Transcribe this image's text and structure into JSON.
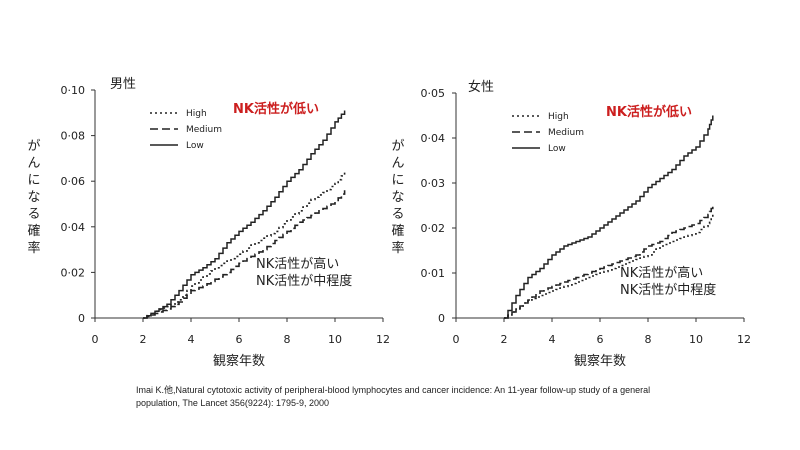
{
  "chart_data": [
    {
      "type": "line",
      "sex_label": "男性",
      "xlabel": "観察年数",
      "ylabel": "がんになる確率",
      "xlim": [
        0,
        12
      ],
      "ylim": [
        0,
        0.1
      ],
      "x_ticks": [
        "0",
        "2",
        "4",
        "6",
        "8",
        "10",
        "12"
      ],
      "y_ticks": [
        "0",
        "0·02",
        "0·04",
        "0·06",
        "0·08",
        "0·10"
      ],
      "legend": [
        "High",
        "Medium",
        "Low"
      ],
      "annotation_low": "NK活性が低い",
      "annotation_high_line1": "NK活性が高い",
      "annotation_high_line2": "NK活性が中程度",
      "series": [
        {
          "name": "High",
          "x": [
            2,
            2.5,
            3,
            3.5,
            4,
            4.5,
            5,
            5.5,
            6,
            6.5,
            7,
            7.5,
            8,
            8.5,
            9,
            9.5,
            10,
            10.4
          ],
          "y": [
            0,
            0.003,
            0.005,
            0.008,
            0.014,
            0.018,
            0.022,
            0.025,
            0.028,
            0.032,
            0.035,
            0.038,
            0.043,
            0.047,
            0.052,
            0.055,
            0.059,
            0.064
          ]
        },
        {
          "name": "Medium",
          "x": [
            2,
            2.5,
            3,
            3.5,
            4,
            4.5,
            5,
            5.5,
            6,
            6.5,
            7,
            7.5,
            8,
            8.5,
            9,
            9.5,
            10,
            10.4
          ],
          "y": [
            0,
            0.002,
            0.004,
            0.007,
            0.012,
            0.014,
            0.017,
            0.02,
            0.024,
            0.027,
            0.03,
            0.034,
            0.038,
            0.042,
            0.045,
            0.048,
            0.051,
            0.056
          ]
        },
        {
          "name": "Low",
          "x": [
            2,
            2.5,
            3,
            3.5,
            4,
            4.5,
            5,
            5.5,
            6,
            6.5,
            7,
            7.5,
            8,
            8.5,
            9,
            9.5,
            10,
            10.4
          ],
          "y": [
            0,
            0.003,
            0.006,
            0.012,
            0.019,
            0.022,
            0.026,
            0.033,
            0.038,
            0.042,
            0.047,
            0.053,
            0.06,
            0.065,
            0.072,
            0.078,
            0.086,
            0.091
          ]
        }
      ]
    },
    {
      "type": "line",
      "sex_label": "女性",
      "xlabel": "観察年数",
      "ylabel": "がんになる確率",
      "xlim": [
        0,
        12
      ],
      "ylim": [
        0,
        0.05
      ],
      "x_ticks": [
        "0",
        "2",
        "4",
        "6",
        "8",
        "10",
        "12"
      ],
      "y_ticks": [
        "0",
        "0·01",
        "0·02",
        "0·03",
        "0·04",
        "0·05"
      ],
      "legend": [
        "High",
        "Medium",
        "Low"
      ],
      "annotation_low": "NK活性が低い",
      "annotation_high_line1": "NK活性が高い",
      "annotation_high_line2": "NK活性が中程度",
      "series": [
        {
          "name": "High",
          "x": [
            2,
            2.5,
            3,
            3.5,
            4,
            4.5,
            5,
            5.5,
            6,
            6.5,
            7,
            7.5,
            8,
            8.5,
            9,
            9.5,
            10,
            10.5,
            10.7
          ],
          "y": [
            0,
            0.002,
            0.004,
            0.005,
            0.006,
            0.007,
            0.008,
            0.009,
            0.01,
            0.011,
            0.012,
            0.013,
            0.014,
            0.016,
            0.017,
            0.018,
            0.019,
            0.021,
            0.023
          ]
        },
        {
          "name": "Medium",
          "x": [
            2,
            2.5,
            3,
            3.5,
            4,
            4.5,
            5,
            5.5,
            6,
            6.5,
            7,
            7.5,
            8,
            8.5,
            9,
            9.5,
            10,
            10.5,
            10.7
          ],
          "y": [
            0,
            0.002,
            0.004,
            0.006,
            0.007,
            0.008,
            0.009,
            0.01,
            0.011,
            0.012,
            0.013,
            0.014,
            0.016,
            0.017,
            0.019,
            0.02,
            0.021,
            0.023,
            0.025
          ]
        },
        {
          "name": "Low",
          "x": [
            2,
            2.5,
            3,
            3.5,
            4,
            4.5,
            5,
            5.5,
            6,
            6.5,
            7,
            7.5,
            8,
            8.5,
            9,
            9.5,
            10,
            10.5,
            10.7
          ],
          "y": [
            0,
            0.005,
            0.009,
            0.011,
            0.014,
            0.016,
            0.017,
            0.018,
            0.02,
            0.022,
            0.024,
            0.026,
            0.029,
            0.031,
            0.033,
            0.036,
            0.038,
            0.042,
            0.045
          ]
        }
      ]
    }
  ],
  "citation_line1": "Imai K.他,Natural cytotoxic activity of peripheral-blood  lymphocytes and cancer incidence: An 11-year follow-up study of a general",
  "citation_line2": "population, The Lancet 356(9224): 1795-9, 2000"
}
